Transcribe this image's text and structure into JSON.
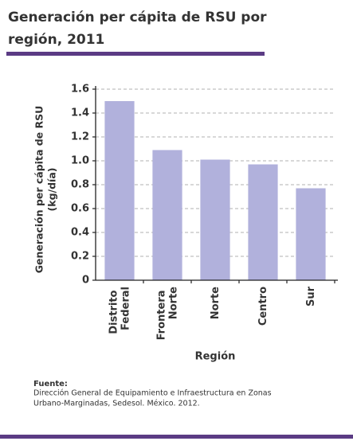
{
  "chart_data": {
    "type": "bar",
    "title": [
      "Generación per cápita de RSU por",
      "región, 2011"
    ],
    "y_label": [
      "Generación per cápita de RSU",
      "(kg/día)"
    ],
    "x_label": "Región",
    "categories": [
      "Distrito Federal",
      "Frontera Norte",
      "Norte",
      "Centro",
      "Sur"
    ],
    "values": [
      1.5,
      1.09,
      1.01,
      0.97,
      0.77
    ],
    "color": "#b1b1dc",
    "ylim": [
      0,
      1.6
    ],
    "yticks": [
      0,
      0.2,
      0.4,
      0.6,
      0.8,
      {
        "value": 1,
        "label": "1.0"
      },
      1.2,
      1.4,
      1.6
    ],
    "grid": true,
    "source_title": "Fuente:",
    "source": [
      "Dirección General de Equipamiento e Infraestructura en Zonas",
      "Urbano-Marginadas, Sedesol. México. 2012."
    ]
  }
}
